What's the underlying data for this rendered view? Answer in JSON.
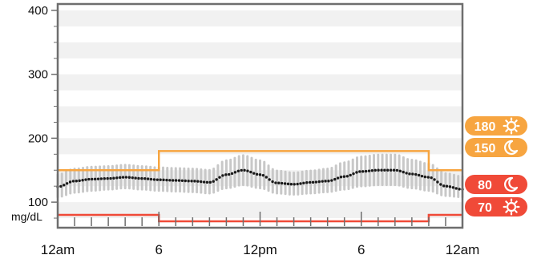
{
  "chart_data": {
    "type": "line",
    "title": "",
    "ylabel": "mg/dL",
    "ylim": [
      60,
      410
    ],
    "y_ticks": [
      100,
      200,
      300,
      400
    ],
    "x_ticks": [
      "12am",
      "6",
      "12pm",
      "6",
      "12am"
    ],
    "x_range_hours": [
      0,
      24
    ],
    "grid": "alternating horizontal bands",
    "series": [
      {
        "kind": "median",
        "x": [
          0,
          1,
          2,
          3,
          4,
          5,
          6,
          7,
          8,
          9,
          10,
          11,
          12,
          13,
          14,
          15,
          16,
          17,
          18,
          19,
          20,
          21,
          22,
          23,
          24
        ],
        "values": [
          124,
          133,
          136,
          137,
          139,
          137,
          135,
          134,
          133,
          131,
          143,
          150,
          143,
          130,
          128,
          131,
          133,
          140,
          148,
          150,
          150,
          144,
          139,
          125,
          120
        ]
      },
      {
        "kind": "range",
        "x": [
          0,
          1,
          2,
          3,
          4,
          5,
          6,
          7,
          8,
          9,
          10,
          11,
          12,
          13,
          14,
          15,
          16,
          17,
          18,
          19,
          20,
          21,
          22,
          23,
          24
        ],
        "low": [
          108,
          115,
          118,
          120,
          122,
          120,
          118,
          117,
          116,
          114,
          122,
          127,
          122,
          114,
          112,
          114,
          116,
          120,
          125,
          127,
          127,
          122,
          118,
          110,
          108
        ],
        "high": [
          143,
          152,
          155,
          156,
          158,
          156,
          154,
          153,
          152,
          150,
          165,
          173,
          165,
          149,
          146,
          149,
          152,
          162,
          171,
          174,
          174,
          166,
          160,
          145,
          140
        ]
      }
    ],
    "targets": {
      "high": {
        "color": "#f7a540",
        "segments": [
          {
            "x0": 0,
            "x1": 6,
            "value": 150
          },
          {
            "x0": 6,
            "x1": 22,
            "value": 180
          },
          {
            "x0": 22,
            "x1": 24,
            "value": 150
          }
        ]
      },
      "low": {
        "color": "#f04a38",
        "segments": [
          {
            "x0": 0,
            "x1": 6,
            "value": 80
          },
          {
            "x0": 6,
            "x1": 22,
            "value": 70
          },
          {
            "x0": 22,
            "x1": 24,
            "value": 80
          }
        ]
      }
    },
    "badges": [
      {
        "value": "180",
        "icon": "sun-icon",
        "color": "#f7a540"
      },
      {
        "value": "150",
        "icon": "moon-icon",
        "color": "#f7a540"
      },
      {
        "value": "80",
        "icon": "moon-icon",
        "color": "#f04a38"
      },
      {
        "value": "70",
        "icon": "sun-icon",
        "color": "#f04a38"
      }
    ],
    "colors": {
      "frame": "#6e6e6e",
      "band": "#f1f1f1",
      "range": "#c8c8c8",
      "median": "#1a1a1a"
    }
  }
}
